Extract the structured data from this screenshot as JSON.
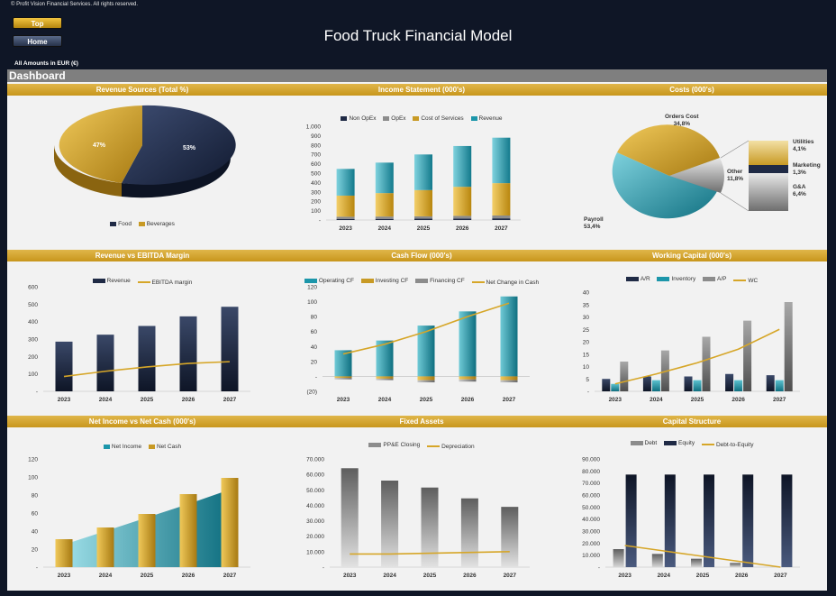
{
  "header": {
    "copyright": "© Profit Vision Financial Services. All rights reserved.",
    "title": "Food Truck Financial Model",
    "top_label": "Top",
    "home_label": "Home",
    "amounts": "All Amounts in  EUR (€)",
    "dashboard": "Dashboard"
  },
  "colors": {
    "gold": "#c89a25",
    "navy": "#1f2a45",
    "teal": "#1c96aa",
    "gray": "#8c8c8c",
    "line": "#d6a628"
  },
  "chart_data": [
    {
      "id": "revenue_sources",
      "type": "pie",
      "title": "Revenue Sources (Total %)",
      "slices": [
        {
          "name": "Food",
          "value": 53,
          "label": "53%"
        },
        {
          "name": "Beverages",
          "value": 47,
          "label": "47%"
        }
      ]
    },
    {
      "id": "income_statement",
      "type": "bar",
      "stacked": true,
      "title": "Income Statement (000's)",
      "categories": [
        "2023",
        "2024",
        "2025",
        "2026",
        "2027"
      ],
      "yticks": [
        "1.000",
        "900",
        "800",
        "700",
        "600",
        "500",
        "400",
        "300",
        "200",
        "100",
        "-"
      ],
      "ylim": [
        0,
        1000
      ],
      "series": [
        {
          "name": "Non OpEx",
          "values": [
            10,
            12,
            14,
            16,
            18
          ]
        },
        {
          "name": "OpEx",
          "values": [
            25,
            25,
            25,
            28,
            30
          ]
        },
        {
          "name": "Cost of Services",
          "values": [
            225,
            250,
            280,
            310,
            345
          ]
        },
        {
          "name": "Revenue",
          "values": [
            285,
            325,
            380,
            435,
            485
          ]
        }
      ]
    },
    {
      "id": "costs",
      "type": "pie",
      "title": "Costs (000's)",
      "slices": [
        {
          "name": "Payroll",
          "value": 53.4,
          "label": "Payroll\n53,4%"
        },
        {
          "name": "Orders Cost",
          "value": 34.8,
          "label": "Orders Cost\n34,8%"
        },
        {
          "name": "Other",
          "value": 11.8,
          "label": "Other\n11,8%"
        }
      ],
      "breakdown": [
        {
          "name": "Utilities",
          "value": 4.1,
          "label": "Utilities\n4,1%"
        },
        {
          "name": "Marketing",
          "value": 1.3,
          "label": "Marketing\n1,3%"
        },
        {
          "name": "G&A",
          "value": 6.4,
          "label": "G&A\n6,4%"
        }
      ]
    },
    {
      "id": "rev_ebitda",
      "type": "bar",
      "title": "Revenue vs EBITDA Margin",
      "categories": [
        "2023",
        "2024",
        "2025",
        "2026",
        "2027"
      ],
      "yticks": [
        "600",
        "500",
        "400",
        "300",
        "200",
        "100",
        "-"
      ],
      "ylim": [
        0,
        600
      ],
      "series": [
        {
          "name": "Revenue",
          "values": [
            285,
            325,
            375,
            430,
            485
          ]
        },
        {
          "name": "EBITDA margin",
          "values": [
            85,
            115,
            140,
            160,
            170
          ],
          "kind": "line"
        }
      ]
    },
    {
      "id": "cash_flow",
      "type": "bar",
      "title": "Cash Flow (000's)",
      "categories": [
        "2023",
        "2024",
        "2025",
        "2026",
        "2027"
      ],
      "yticks": [
        "120",
        "100",
        "80",
        "60",
        "40",
        "20",
        "-",
        "(20)"
      ],
      "ylim": [
        -20,
        120
      ],
      "series": [
        {
          "name": "Operating CF",
          "values": [
            35,
            48,
            68,
            87,
            107
          ]
        },
        {
          "name": "Investing CF",
          "values": [
            -2,
            -3,
            -5,
            -4,
            -5
          ]
        },
        {
          "name": "Financing CF",
          "values": [
            -2,
            -2,
            -3,
            -3,
            -3
          ]
        },
        {
          "name": "Net Change in Cash",
          "values": [
            30,
            43,
            60,
            80,
            98
          ],
          "kind": "line"
        }
      ]
    },
    {
      "id": "working_capital",
      "type": "bar",
      "title": "Working Capital (000's)",
      "categories": [
        "2023",
        "2024",
        "2025",
        "2026",
        "2027"
      ],
      "yticks": [
        "40",
        "35",
        "30",
        "25",
        "20",
        "15",
        "10",
        "5",
        "-"
      ],
      "ylim": [
        0,
        40
      ],
      "series": [
        {
          "name": "A/R",
          "values": [
            5,
            6,
            6,
            7,
            6.5
          ]
        },
        {
          "name": "Inventory",
          "values": [
            3,
            4.5,
            4.5,
            4.5,
            4.5
          ]
        },
        {
          "name": "A/P",
          "values": [
            12,
            16.5,
            22,
            28.5,
            36
          ]
        },
        {
          "name": "WC",
          "values": [
            3,
            7,
            11.5,
            17,
            25
          ],
          "kind": "line"
        }
      ]
    },
    {
      "id": "net_income_cash",
      "type": "bar",
      "title": "Net Income vs Net Cash (000's)",
      "categories": [
        "2023",
        "2024",
        "2025",
        "2026",
        "2027"
      ],
      "yticks": [
        "120",
        "100",
        "80",
        "60",
        "40",
        "20",
        "-"
      ],
      "ylim": [
        0,
        120
      ],
      "series": [
        {
          "name": "Net Income",
          "values": [
            25,
            40,
            55,
            70,
            86
          ],
          "kind": "area"
        },
        {
          "name": "Net Cash",
          "values": [
            31,
            44,
            59,
            81,
            99
          ]
        }
      ]
    },
    {
      "id": "fixed_assets",
      "type": "bar",
      "title": "Fixed Assets",
      "categories": [
        "2023",
        "2024",
        "2025",
        "2026",
        "2027"
      ],
      "yticks": [
        "70.000",
        "60.000",
        "50.000",
        "40.000",
        "30.000",
        "20.000",
        "10.000",
        "-"
      ],
      "ylim": [
        0,
        70000
      ],
      "series": [
        {
          "name": "PP&E Closing",
          "values": [
            64000,
            56000,
            51500,
            44500,
            39000
          ]
        },
        {
          "name": "Depreciation",
          "values": [
            8500,
            8500,
            9000,
            9500,
            10000
          ],
          "kind": "line"
        }
      ]
    },
    {
      "id": "capital_structure",
      "type": "bar",
      "title": "Capital Structure",
      "categories": [
        "2023",
        "2024",
        "2025",
        "2026",
        "2027"
      ],
      "yticks": [
        "90.000",
        "80.000",
        "70.000",
        "60.000",
        "50.000",
        "40.000",
        "30.000",
        "20.000",
        "10.000",
        "-"
      ],
      "ylim": [
        0,
        90000
      ],
      "series": [
        {
          "name": "Debt",
          "values": [
            15000,
            11000,
            7000,
            3500,
            0
          ]
        },
        {
          "name": "Equity",
          "values": [
            77000,
            77000,
            77000,
            77000,
            77000
          ]
        },
        {
          "name": "Debt-to-Equity",
          "values": [
            18000,
            13500,
            9000,
            4500,
            0
          ],
          "kind": "line"
        }
      ]
    }
  ]
}
